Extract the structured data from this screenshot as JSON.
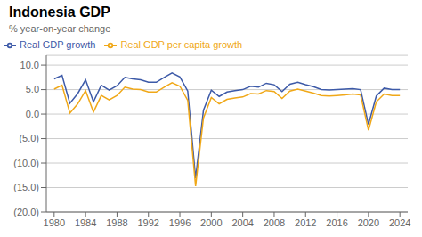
{
  "chart_data": {
    "type": "line",
    "title": "Indonesia  GDP",
    "subtitle": "% year-on-year change",
    "x": [
      1980,
      1981,
      1982,
      1983,
      1984,
      1985,
      1986,
      1987,
      1988,
      1989,
      1990,
      1991,
      1992,
      1993,
      1994,
      1995,
      1996,
      1997,
      1998,
      1999,
      2000,
      2001,
      2002,
      2003,
      2004,
      2005,
      2006,
      2007,
      2008,
      2009,
      2010,
      2011,
      2012,
      2013,
      2014,
      2015,
      2016,
      2017,
      2018,
      2019,
      2020,
      2021,
      2022,
      2023,
      2024
    ],
    "series": [
      {
        "name": "Real GDP growth",
        "color": "#3d5aa8",
        "values": [
          7.2,
          7.9,
          2.2,
          4.2,
          7.0,
          2.5,
          5.9,
          4.9,
          5.8,
          7.5,
          7.2,
          7.0,
          6.5,
          6.5,
          7.5,
          8.4,
          7.6,
          4.7,
          -13.1,
          0.8,
          4.9,
          3.6,
          4.5,
          4.8,
          5.0,
          5.7,
          5.5,
          6.3,
          6.0,
          4.6,
          6.1,
          6.5,
          6.0,
          5.6,
          5.0,
          4.9,
          5.0,
          5.1,
          5.2,
          5.0,
          -2.1,
          3.7,
          5.3,
          5.0,
          5.0
        ]
      },
      {
        "name": "Real GDP per capita growth",
        "color": "#f0a818",
        "values": [
          5.1,
          5.9,
          0.2,
          2.1,
          4.8,
          0.4,
          3.8,
          2.9,
          3.8,
          5.5,
          5.1,
          5.0,
          4.5,
          4.5,
          5.5,
          6.4,
          5.7,
          2.8,
          -14.7,
          -0.8,
          3.4,
          2.1,
          3.0,
          3.3,
          3.5,
          4.2,
          4.1,
          4.8,
          4.6,
          3.2,
          4.7,
          5.1,
          4.7,
          4.3,
          3.8,
          3.7,
          3.8,
          3.9,
          4.1,
          3.9,
          -3.3,
          2.5,
          4.1,
          3.8,
          3.8
        ]
      }
    ],
    "xlim": [
      1979,
      2025
    ],
    "ylim": [
      -20,
      12
    ],
    "xticks": [
      1980,
      1984,
      1988,
      1992,
      1996,
      2000,
      2004,
      2008,
      2012,
      2016,
      2020,
      2024
    ],
    "yticks": [
      {
        "value": 10,
        "label": "10.0"
      },
      {
        "value": 5,
        "label": "5.0"
      },
      {
        "value": 0,
        "label": "0.0"
      },
      {
        "value": -5,
        "label": "(5.0)"
      },
      {
        "value": -10,
        "label": "(10.0)"
      },
      {
        "value": -15,
        "label": "(15.0)"
      },
      {
        "value": -20,
        "label": "(20.0)"
      }
    ],
    "grid": true,
    "legend": "upper left"
  }
}
